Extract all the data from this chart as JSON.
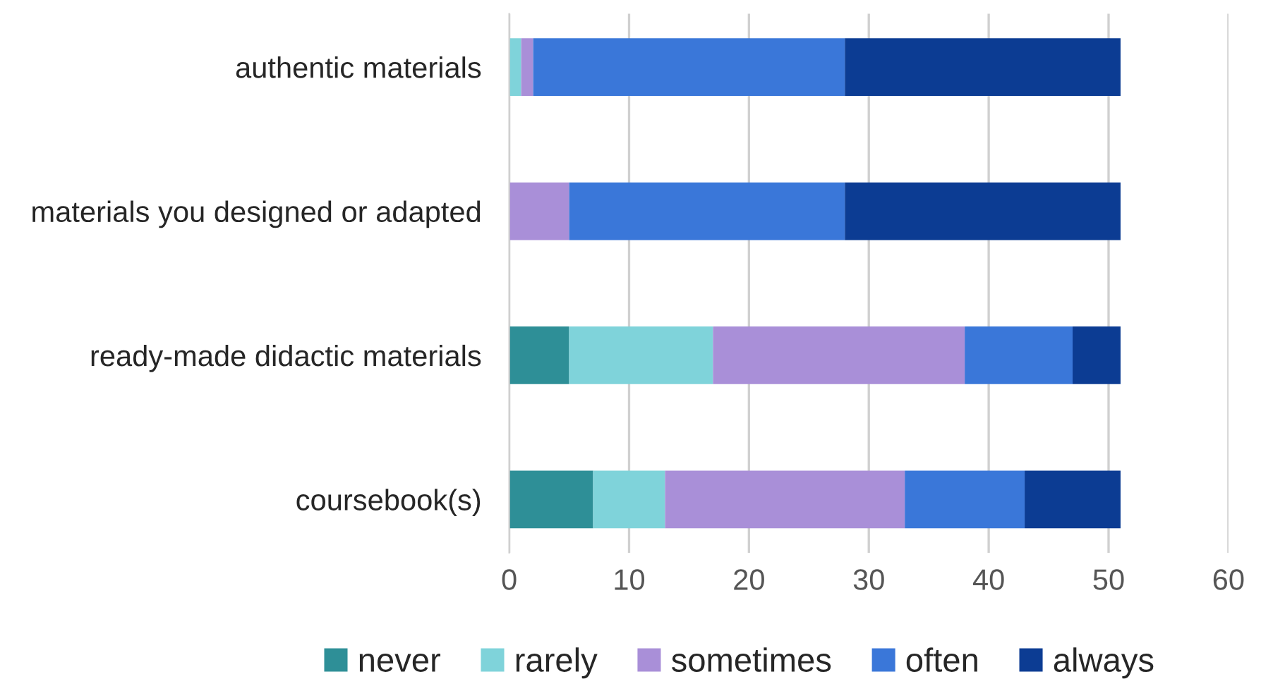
{
  "chart_data": {
    "type": "bar",
    "orientation": "horizontal",
    "stacked": true,
    "categories": [
      "authentic materials",
      "materials you designed or adapted",
      "ready-made didactic materials",
      "coursebook(s)"
    ],
    "series": [
      {
        "name": "never",
        "color": "#2e8f97",
        "values": [
          0,
          0,
          5,
          7
        ]
      },
      {
        "name": "rarely",
        "color": "#7fd3da",
        "values": [
          1,
          0,
          12,
          6
        ]
      },
      {
        "name": "sometimes",
        "color": "#a98fd8",
        "values": [
          1,
          5,
          21,
          20
        ]
      },
      {
        "name": "often",
        "color": "#3a77d9",
        "values": [
          26,
          23,
          9,
          10
        ]
      },
      {
        "name": "always",
        "color": "#0c3c93",
        "values": [
          23,
          23,
          4,
          8
        ]
      }
    ],
    "xlim": [
      0,
      60
    ],
    "xticks": [
      0,
      10,
      20,
      30,
      40,
      50,
      60
    ],
    "grid": "x",
    "legend": "bottom"
  }
}
